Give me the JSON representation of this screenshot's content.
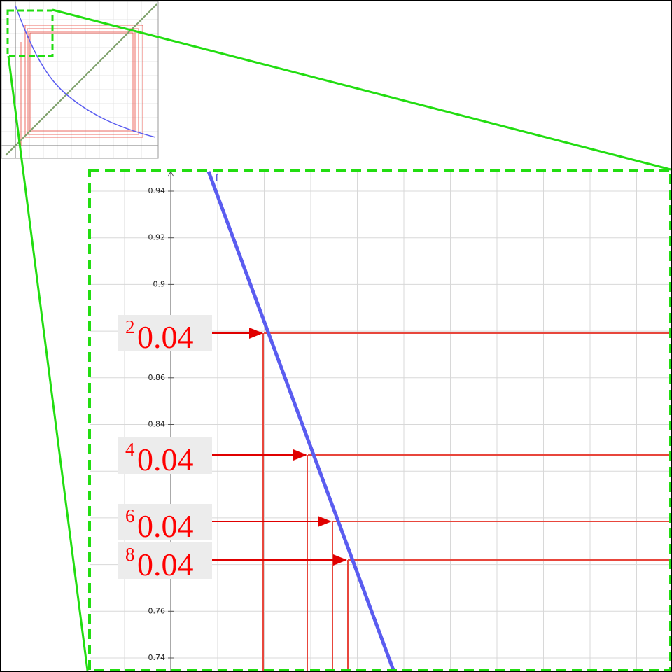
{
  "zoom": {
    "function_label": "f",
    "y_axis_ticks": [
      0.94,
      0.92,
      0.9,
      0.86,
      0.84,
      0.76,
      0.74
    ]
  },
  "annotations": [
    {
      "superscript": "2",
      "text": "0.04"
    },
    {
      "superscript": "4",
      "text": "0.04"
    },
    {
      "superscript": "6",
      "text": "0.04"
    },
    {
      "superscript": "8",
      "text": "0.04"
    }
  ]
}
